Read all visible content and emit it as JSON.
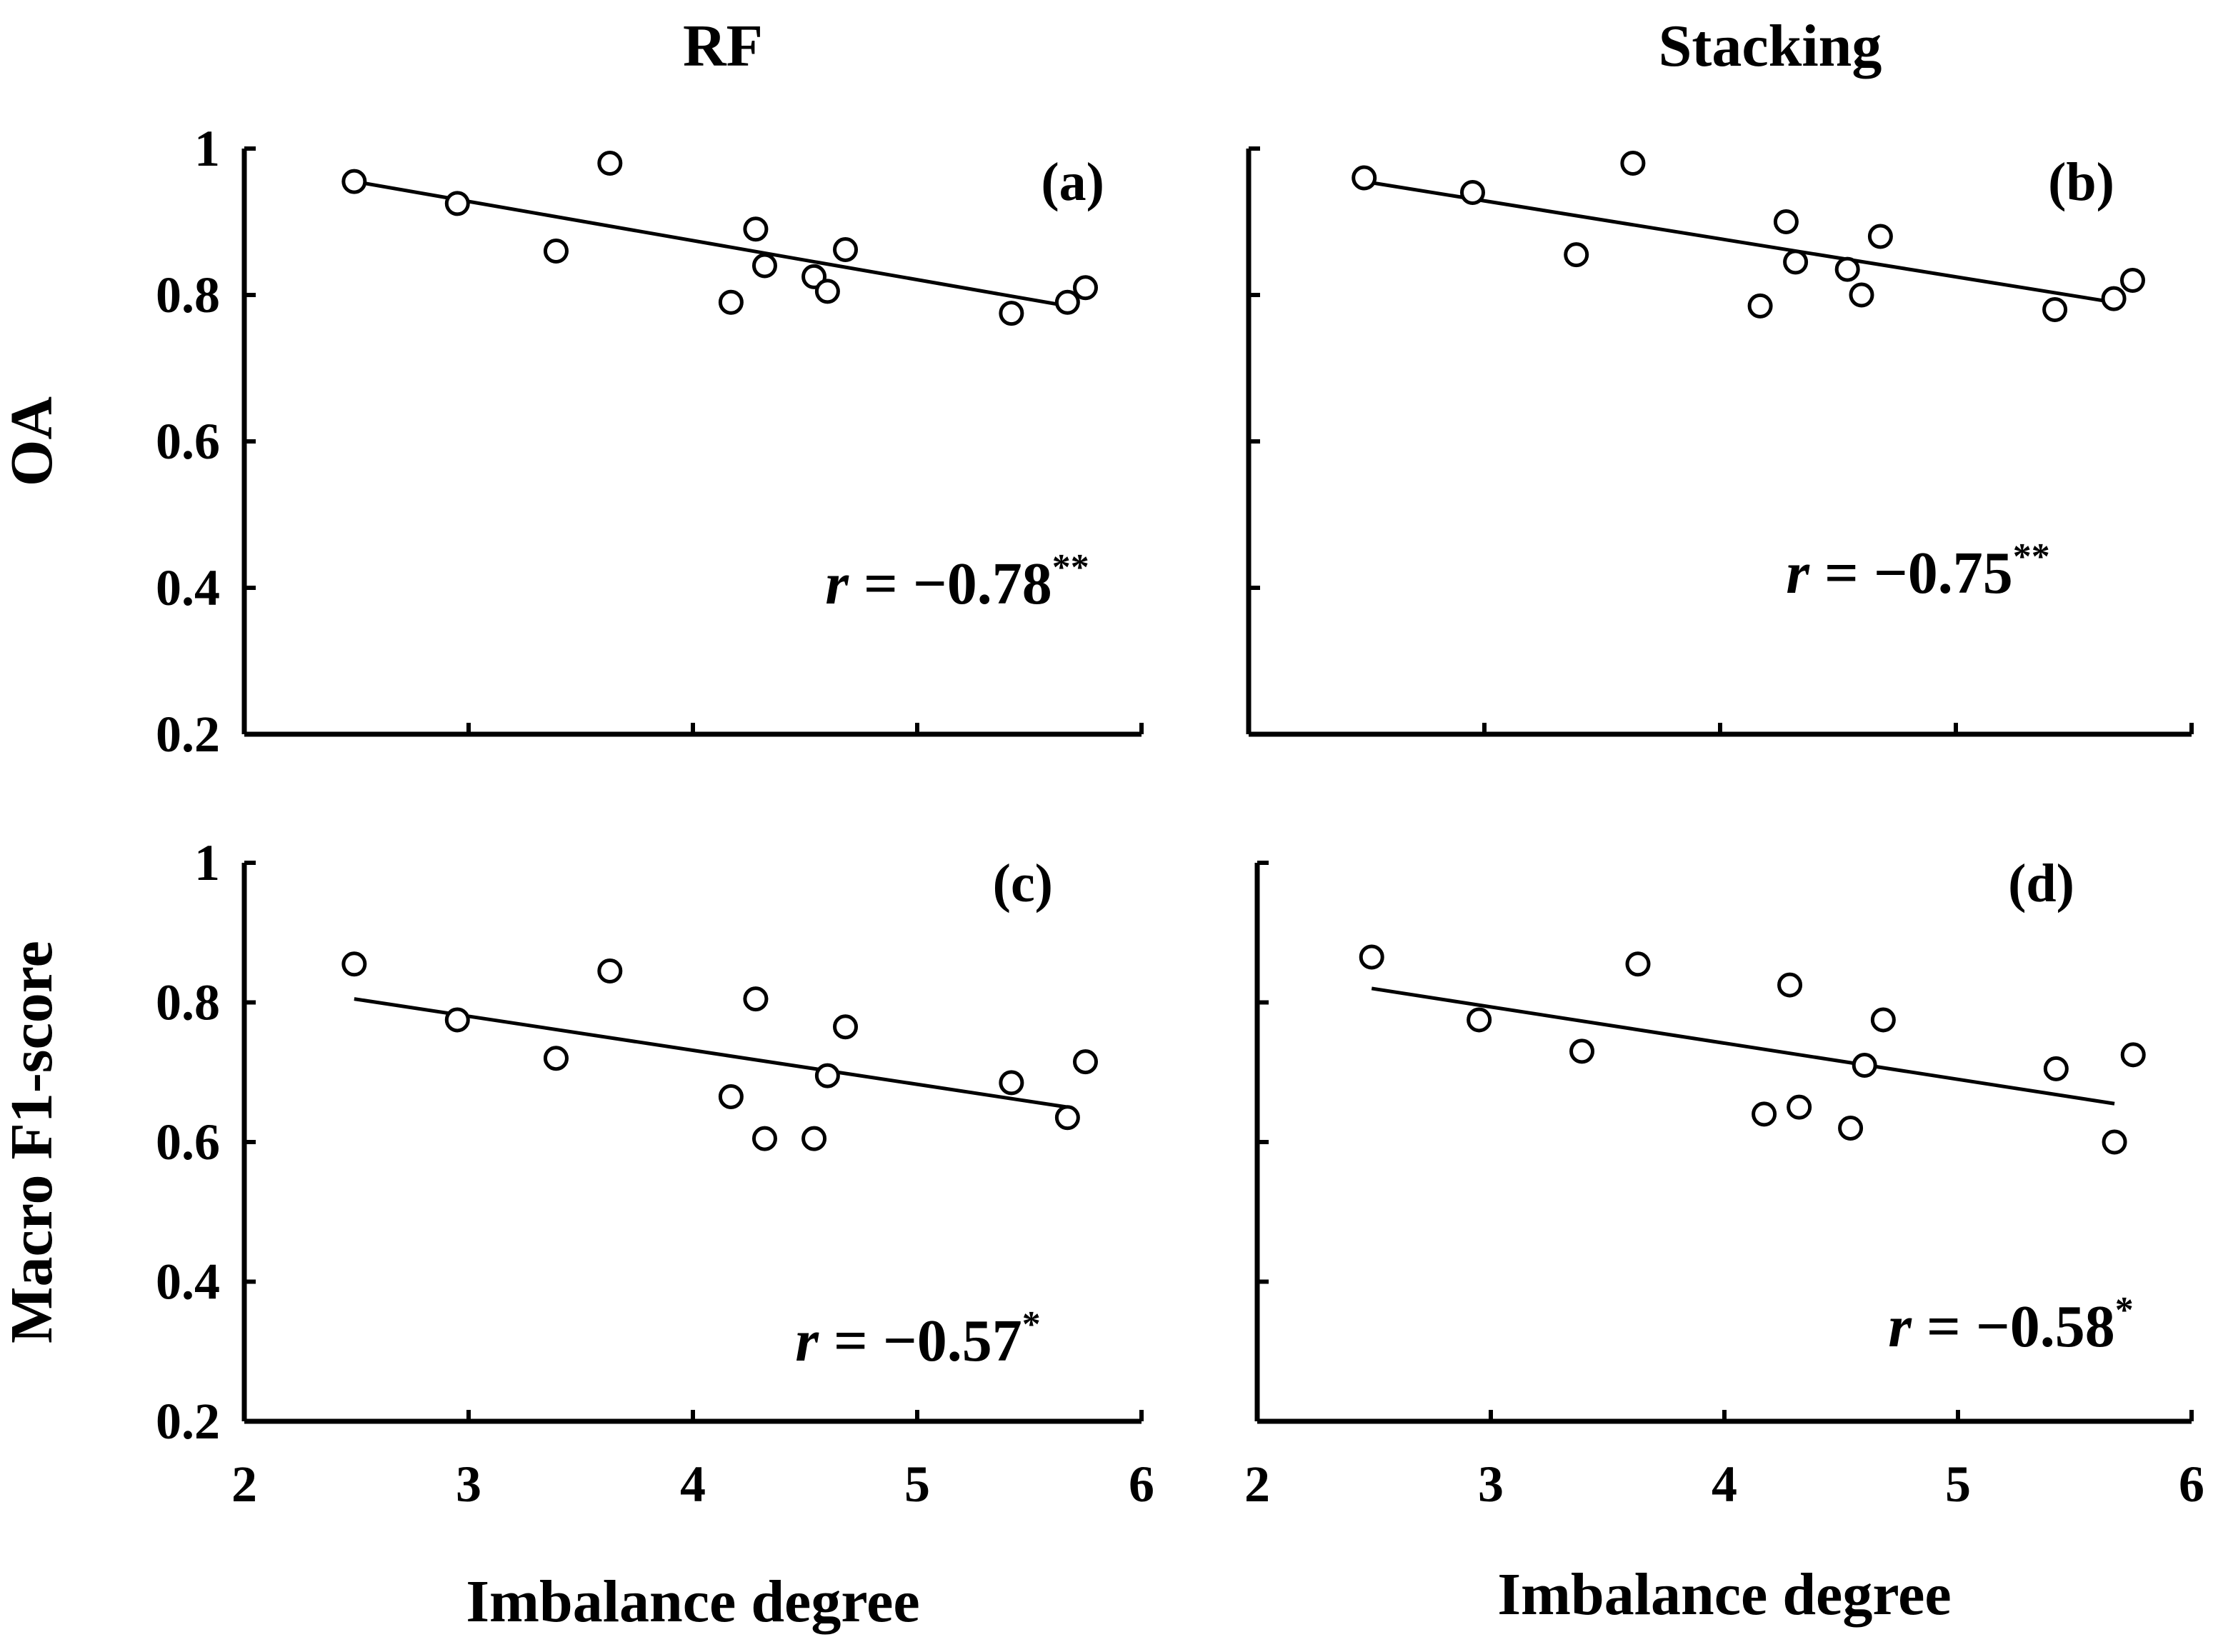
{
  "chart_data": [
    {
      "type": "scatter",
      "panel_label": "(a)",
      "column_title": "RF",
      "ylabel": "OA",
      "xlabel": "",
      "xlim": [
        2,
        6
      ],
      "ylim": [
        0.2,
        1
      ],
      "xticks": [
        "2",
        "3",
        "4",
        "5",
        "6"
      ],
      "yticks": [
        "0.2",
        "0.4",
        "0.6",
        "0.8",
        "1"
      ],
      "show_x_tick_labels": false,
      "show_y_tick_labels": true,
      "x": [
        2.49,
        2.95,
        3.39,
        3.63,
        4.17,
        4.28,
        4.32,
        4.54,
        4.6,
        4.68,
        5.42,
        5.67,
        5.75
      ],
      "y": [
        0.955,
        0.925,
        0.86,
        0.98,
        0.79,
        0.89,
        0.84,
        0.825,
        0.805,
        0.862,
        0.775,
        0.79,
        0.81
      ],
      "fit": {
        "x1": 2.49,
        "y1": 0.955,
        "x2": 5.67,
        "y2": 0.785
      },
      "r_var": "r",
      "r_value": "= −0.78",
      "r_sig": "**"
    },
    {
      "type": "scatter",
      "panel_label": "(b)",
      "column_title": "Stacking",
      "ylabel": "",
      "xlabel": "",
      "xlim": [
        2,
        6
      ],
      "ylim": [
        0.2,
        1
      ],
      "xticks": [
        "2",
        "3",
        "4",
        "5",
        "6"
      ],
      "yticks": [
        "0.2",
        "0.4",
        "0.6",
        "0.8",
        "1"
      ],
      "show_x_tick_labels": false,
      "show_y_tick_labels": false,
      "x": [
        2.49,
        2.95,
        3.39,
        3.63,
        4.17,
        4.28,
        4.32,
        4.54,
        4.6,
        4.68,
        5.42,
        5.67,
        5.75
      ],
      "y": [
        0.96,
        0.94,
        0.855,
        0.98,
        0.785,
        0.9,
        0.845,
        0.835,
        0.8,
        0.88,
        0.78,
        0.795,
        0.82
      ],
      "fit": {
        "x1": 2.49,
        "y1": 0.955,
        "x2": 5.67,
        "y2": 0.79
      },
      "r_var": "r",
      "r_value": "= −0.75",
      "r_sig": "**"
    },
    {
      "type": "scatter",
      "panel_label": "(c)",
      "column_title": "",
      "ylabel": "Macro F1-score",
      "xlabel": "Imbalance degree",
      "xlim": [
        2,
        6
      ],
      "ylim": [
        0.2,
        1
      ],
      "xticks": [
        "2",
        "3",
        "4",
        "5",
        "6"
      ],
      "yticks": [
        "0.2",
        "0.4",
        "0.6",
        "0.8",
        "1"
      ],
      "show_x_tick_labels": true,
      "show_y_tick_labels": true,
      "x": [
        2.49,
        2.95,
        3.39,
        3.63,
        4.17,
        4.28,
        4.32,
        4.54,
        4.6,
        4.68,
        5.42,
        5.67,
        5.75
      ],
      "y": [
        0.855,
        0.775,
        0.72,
        0.845,
        0.665,
        0.805,
        0.605,
        0.605,
        0.695,
        0.765,
        0.685,
        0.635,
        0.715
      ],
      "fit": {
        "x1": 2.49,
        "y1": 0.805,
        "x2": 5.67,
        "y2": 0.65
      },
      "r_var": "r",
      "r_value": "= −0.57",
      "r_sig": "*"
    },
    {
      "type": "scatter",
      "panel_label": "(d)",
      "column_title": "",
      "ylabel": "",
      "xlabel": "Imbalance degree",
      "xlim": [
        2,
        6
      ],
      "ylim": [
        0.2,
        1
      ],
      "xticks": [
        "2",
        "3",
        "4",
        "5",
        "6"
      ],
      "yticks": [
        "0.2",
        "0.4",
        "0.6",
        "0.8",
        "1"
      ],
      "show_x_tick_labels": true,
      "show_y_tick_labels": false,
      "x": [
        2.49,
        2.95,
        3.39,
        3.63,
        4.17,
        4.28,
        4.32,
        4.54,
        4.6,
        4.68,
        5.42,
        5.67,
        5.75
      ],
      "y": [
        0.865,
        0.775,
        0.73,
        0.855,
        0.64,
        0.825,
        0.65,
        0.62,
        0.71,
        0.775,
        0.705,
        0.6,
        0.725
      ],
      "fit": {
        "x1": 2.49,
        "y1": 0.82,
        "x2": 5.67,
        "y2": 0.655
      },
      "r_var": "r",
      "r_value": "= −0.58",
      "r_sig": "*"
    }
  ]
}
